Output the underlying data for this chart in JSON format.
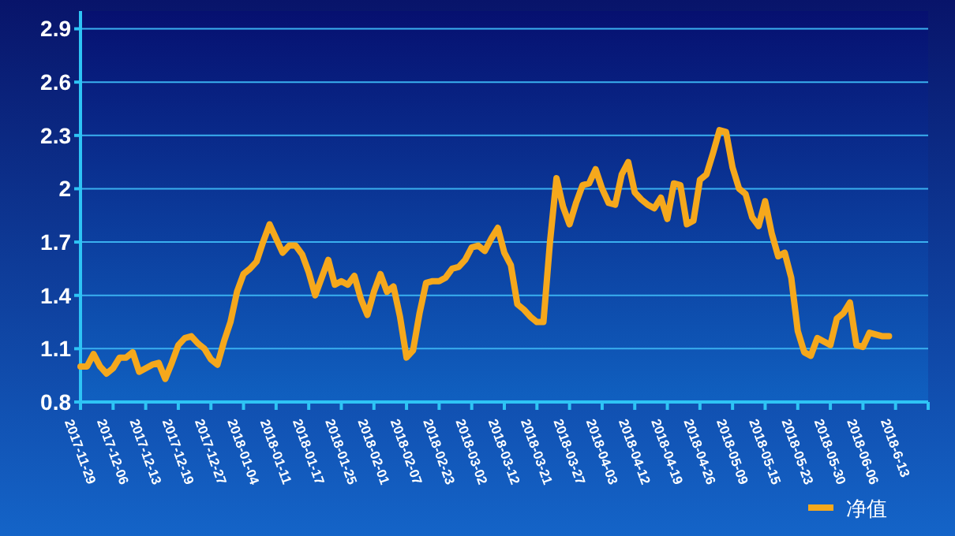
{
  "chart_data": {
    "type": "line",
    "categories": [
      "2017-11-29",
      null,
      null,
      null,
      null,
      "2017-12-06",
      null,
      null,
      null,
      null,
      "2017-12-13",
      null,
      null,
      null,
      null,
      "2017-12-19",
      null,
      null,
      null,
      null,
      "2017-12-27",
      null,
      null,
      null,
      null,
      "2018-01-04",
      null,
      null,
      null,
      null,
      "2018-01-11",
      null,
      null,
      null,
      null,
      "2018-01-17",
      null,
      null,
      null,
      null,
      "2018-01-25",
      null,
      null,
      null,
      null,
      "2018-02-01",
      null,
      null,
      null,
      null,
      "2018-02-07",
      null,
      null,
      null,
      null,
      "2018-02-23",
      null,
      null,
      null,
      null,
      "2018-03-02",
      null,
      null,
      null,
      null,
      "2018-03-12",
      null,
      null,
      null,
      null,
      "2018-03-21",
      null,
      null,
      null,
      null,
      "2018-03-27",
      null,
      null,
      null,
      null,
      "2018-04-03",
      null,
      null,
      null,
      null,
      "2018-04-12",
      null,
      null,
      null,
      null,
      "2018-04-19",
      null,
      null,
      null,
      null,
      "2018-04-26",
      null,
      null,
      null,
      null,
      "2018-05-09",
      null,
      null,
      null,
      null,
      "2018-05-15",
      null,
      null,
      null,
      null,
      "2018-05-23",
      null,
      null,
      null,
      null,
      "2018-05-30",
      null,
      null,
      null,
      null,
      "2018-06-06",
      null,
      null,
      null,
      null,
      "2018-6-13",
      null,
      null,
      null,
      null
    ],
    "series": [
      {
        "name": "净值",
        "color": "#f5a81c",
        "values": [
          1.0,
          1.0,
          1.07,
          1.0,
          0.96,
          0.99,
          1.05,
          1.05,
          1.08,
          0.97,
          0.99,
          1.01,
          1.02,
          0.93,
          1.02,
          1.12,
          1.16,
          1.17,
          1.13,
          1.1,
          1.04,
          1.01,
          1.14,
          1.25,
          1.42,
          1.52,
          1.55,
          1.59,
          1.7,
          1.8,
          1.72,
          1.64,
          1.68,
          1.68,
          1.63,
          1.53,
          1.4,
          1.5,
          1.6,
          1.46,
          1.48,
          1.46,
          1.51,
          1.38,
          1.29,
          1.42,
          1.52,
          1.42,
          1.45,
          1.28,
          1.05,
          1.09,
          1.3,
          1.47,
          1.48,
          1.48,
          1.5,
          1.55,
          1.56,
          1.6,
          1.67,
          1.68,
          1.65,
          1.72,
          1.78,
          1.64,
          1.57,
          1.35,
          1.32,
          1.28,
          1.25,
          1.25,
          1.7,
          2.06,
          1.9,
          1.8,
          1.92,
          2.02,
          2.03,
          2.11,
          2.0,
          1.92,
          1.91,
          2.08,
          2.15,
          1.98,
          1.94,
          1.91,
          1.89,
          1.95,
          1.83,
          2.03,
          2.02,
          1.8,
          1.82,
          2.05,
          2.08,
          2.2,
          2.33,
          2.32,
          2.12,
          2.0,
          1.97,
          1.84,
          1.79,
          1.93,
          1.75,
          1.62,
          1.64,
          1.5,
          1.2,
          1.08,
          1.06,
          1.16,
          1.14,
          1.12,
          1.27,
          1.3,
          1.36,
          1.12,
          1.11,
          1.19,
          1.18,
          1.17,
          1.17,
          null,
          null,
          null,
          null,
          null
        ]
      }
    ],
    "ylim": [
      0.8,
      3.0
    ],
    "yticks": [
      0.8,
      1.1,
      1.4,
      1.7,
      2,
      2.3,
      2.6,
      2.9
    ],
    "grid": "y",
    "legend": "bottom right",
    "line_style": "solid",
    "marker": "none"
  }
}
